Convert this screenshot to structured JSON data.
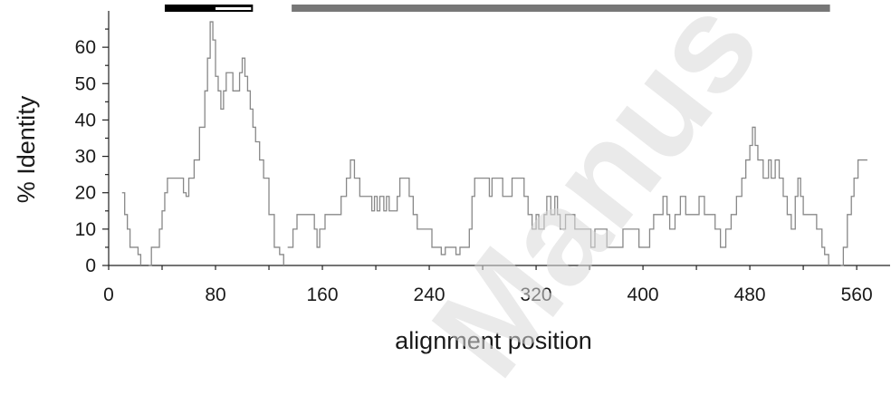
{
  "watermark": "Manus",
  "chart_data": {
    "type": "line",
    "xlabel": "alignment position",
    "ylabel": "% Identity",
    "xlim": [
      0,
      585
    ],
    "ylim": [
      0,
      70
    ],
    "xticks": [
      0,
      80,
      160,
      240,
      320,
      400,
      480,
      560
    ],
    "yticks": [
      0,
      10,
      20,
      30,
      40,
      50,
      60
    ],
    "grid": false,
    "series": [
      {
        "color": "#888888",
        "segments": [
          [
            [
              10,
              20
            ],
            [
              12,
              14
            ],
            [
              14,
              10
            ],
            [
              16,
              5
            ],
            [
              20,
              5
            ],
            [
              22,
              3
            ],
            [
              24,
              0
            ]
          ],
          [
            [
              30,
              0
            ],
            [
              32,
              5
            ],
            [
              36,
              5
            ],
            [
              38,
              10
            ],
            [
              40,
              15
            ],
            [
              42,
              20
            ],
            [
              44,
              24
            ],
            [
              54,
              24
            ],
            [
              56,
              20
            ],
            [
              58,
              19
            ],
            [
              60,
              24
            ],
            [
              64,
              29
            ],
            [
              68,
              38
            ],
            [
              72,
              48
            ],
            [
              74,
              57
            ],
            [
              76,
              67
            ],
            [
              78,
              62
            ],
            [
              80,
              52
            ],
            [
              82,
              48
            ],
            [
              84,
              43
            ],
            [
              86,
              48
            ],
            [
              88,
              53
            ],
            [
              91,
              53
            ],
            [
              93,
              48
            ],
            [
              96,
              48
            ],
            [
              98,
              53
            ],
            [
              100,
              57
            ],
            [
              102,
              52
            ],
            [
              104,
              48
            ],
            [
              106,
              43
            ],
            [
              108,
              38
            ],
            [
              110,
              34
            ],
            [
              113,
              29
            ],
            [
              116,
              24
            ],
            [
              120,
              14
            ],
            [
              124,
              5
            ],
            [
              128,
              3
            ],
            [
              131,
              0
            ]
          ],
          [
            [
              134,
              5
            ],
            [
              138,
              10
            ],
            [
              141,
              14
            ],
            [
              150,
              14
            ],
            [
              154,
              10
            ],
            [
              156,
              5
            ],
            [
              158,
              10
            ],
            [
              162,
              14
            ],
            [
              170,
              14
            ],
            [
              174,
              19
            ],
            [
              178,
              24
            ],
            [
              181,
              29
            ],
            [
              184,
              24
            ],
            [
              188,
              19
            ],
            [
              195,
              19
            ],
            [
              197,
              15
            ],
            [
              199,
              19
            ],
            [
              201,
              15
            ],
            [
              203,
              19
            ],
            [
              206,
              15
            ],
            [
              208,
              19
            ],
            [
              210,
              15
            ],
            [
              214,
              15
            ],
            [
              216,
              19
            ],
            [
              218,
              24
            ],
            [
              222,
              24
            ],
            [
              225,
              19
            ],
            [
              228,
              14
            ],
            [
              231,
              10
            ],
            [
              240,
              10
            ],
            [
              242,
              5
            ],
            [
              246,
              5
            ],
            [
              249,
              3
            ],
            [
              252,
              5
            ],
            [
              258,
              5
            ],
            [
              260,
              3
            ],
            [
              263,
              5
            ],
            [
              268,
              5
            ],
            [
              270,
              10
            ],
            [
              272,
              19
            ],
            [
              274,
              24
            ],
            [
              282,
              24
            ],
            [
              285,
              19
            ],
            [
              287,
              24
            ],
            [
              292,
              24
            ],
            [
              295,
              19
            ],
            [
              300,
              19
            ],
            [
              302,
              24
            ],
            [
              308,
              24
            ],
            [
              311,
              19
            ],
            [
              314,
              14
            ],
            [
              317,
              10
            ],
            [
              320,
              14
            ],
            [
              322,
              10
            ],
            [
              326,
              14
            ],
            [
              328,
              19
            ],
            [
              331,
              14
            ],
            [
              334,
              19
            ],
            [
              336,
              14
            ],
            [
              338,
              10
            ],
            [
              342,
              14
            ],
            [
              346,
              14
            ],
            [
              349,
              10
            ],
            [
              358,
              10
            ],
            [
              361,
              5
            ],
            [
              364,
              10
            ],
            [
              370,
              10
            ],
            [
              373,
              5
            ],
            [
              382,
              5
            ],
            [
              385,
              10
            ],
            [
              394,
              10
            ],
            [
              397,
              5
            ],
            [
              403,
              5
            ],
            [
              405,
              10
            ],
            [
              408,
              14
            ],
            [
              412,
              14
            ],
            [
              415,
              19
            ],
            [
              418,
              14
            ],
            [
              420,
              10
            ],
            [
              424,
              14
            ],
            [
              428,
              19
            ],
            [
              432,
              14
            ],
            [
              438,
              14
            ],
            [
              442,
              19
            ],
            [
              446,
              14
            ],
            [
              450,
              14
            ],
            [
              454,
              10
            ],
            [
              458,
              5
            ],
            [
              462,
              10
            ],
            [
              466,
              14
            ],
            [
              470,
              19
            ],
            [
              474,
              24
            ],
            [
              477,
              29
            ],
            [
              480,
              33
            ],
            [
              482,
              38
            ],
            [
              484,
              33
            ],
            [
              486,
              29
            ],
            [
              490,
              24
            ],
            [
              494,
              29
            ],
            [
              496,
              24
            ],
            [
              499,
              29
            ],
            [
              502,
              24
            ],
            [
              505,
              19
            ],
            [
              508,
              14
            ],
            [
              511,
              10
            ],
            [
              514,
              19
            ],
            [
              516,
              24
            ],
            [
              518,
              19
            ],
            [
              520,
              14
            ],
            [
              528,
              14
            ],
            [
              530,
              10
            ],
            [
              534,
              5
            ],
            [
              536,
              3
            ],
            [
              539,
              0
            ]
          ],
          [
            [
              548,
              0
            ],
            [
              550,
              5
            ],
            [
              553,
              14
            ],
            [
              556,
              19
            ],
            [
              558,
              24
            ],
            [
              561,
              29
            ],
            [
              568,
              29
            ]
          ]
        ]
      }
    ],
    "domain_bars": [
      {
        "start": 42,
        "end": 108,
        "color": "#000000",
        "split_at": 80,
        "second_color": "#ffffff"
      },
      {
        "start": 137,
        "end": 540,
        "color": "#777777"
      }
    ]
  }
}
